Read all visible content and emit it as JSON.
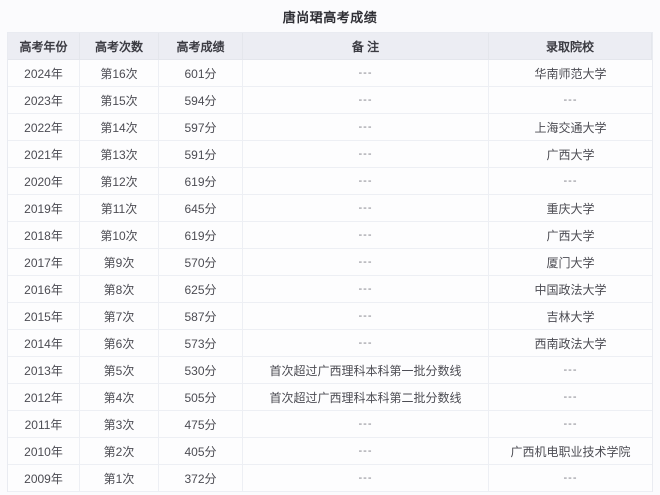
{
  "chart_data": {
    "type": "table",
    "title": "唐尚珺高考成绩",
    "columns": [
      "高考年份",
      "高考次数",
      "高考成绩",
      "备 注",
      "录取院校"
    ],
    "column_keys": [
      "year",
      "attempt",
      "score",
      "remark",
      "college"
    ],
    "rows": [
      [
        "2024年",
        "第16次",
        "601分",
        "---",
        "华南师范大学"
      ],
      [
        "2023年",
        "第15次",
        "594分",
        "---",
        "---"
      ],
      [
        "2022年",
        "第14次",
        "597分",
        "---",
        "上海交通大学"
      ],
      [
        "2021年",
        "第13次",
        "591分",
        "---",
        "广西大学"
      ],
      [
        "2020年",
        "第12次",
        "619分",
        "---",
        "---"
      ],
      [
        "2019年",
        "第11次",
        "645分",
        "---",
        "重庆大学"
      ],
      [
        "2018年",
        "第10次",
        "619分",
        "---",
        "广西大学"
      ],
      [
        "2017年",
        "第9次",
        "570分",
        "---",
        "厦门大学"
      ],
      [
        "2016年",
        "第8次",
        "625分",
        "---",
        "中国政法大学"
      ],
      [
        "2015年",
        "第7次",
        "587分",
        "---",
        "吉林大学"
      ],
      [
        "2014年",
        "第6次",
        "573分",
        "---",
        "西南政法大学"
      ],
      [
        "2013年",
        "第5次",
        "530分",
        "首次超过广西理科本科第一批分数线",
        "---"
      ],
      [
        "2012年",
        "第4次",
        "505分",
        "首次超过广西理科本科第二批分数线",
        "---"
      ],
      [
        "2011年",
        "第3次",
        "475分",
        "---",
        "---"
      ],
      [
        "2010年",
        "第2次",
        "405分",
        "---",
        "广西机电职业技术学院"
      ],
      [
        "2009年",
        "第1次",
        "372分",
        "---",
        "---"
      ]
    ],
    "layout": {
      "grid": true,
      "header_background": "#ecedf3",
      "row_background": "#fdfdfe",
      "border_color": "#edeff4",
      "title_position": "top-center"
    }
  },
  "colors": {
    "page_background": "#fbfbfd",
    "header_background": "#ecedf3",
    "border": "#edeff4",
    "title_text": "#303036",
    "header_text": "#3b3b42",
    "cell_text": "#4c4c53",
    "dash_text": "#7c7c84"
  }
}
